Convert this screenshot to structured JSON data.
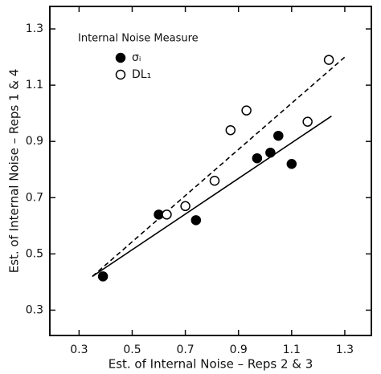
{
  "chart_data": {
    "type": "scatter",
    "x_label": "Est. of Internal Noise – Reps 2 & 3",
    "y_label": "Est. of Internal Noise – Reps 1 & 4",
    "legend_title": "Internal Noise Measure",
    "legend": "upper left",
    "xlim": [
      0.19,
      1.4
    ],
    "ylim": [
      0.21,
      1.38
    ],
    "xticks": [
      0.3,
      0.5,
      0.7,
      0.9,
      1.1,
      1.3
    ],
    "yticks": [
      0.3,
      0.5,
      0.7,
      0.9,
      1.1,
      1.3
    ],
    "series": [
      {
        "name": "σᵢ",
        "color": "#000000",
        "marker": "filled",
        "x": [
          0.39,
          0.6,
          0.74,
          0.97,
          1.02,
          1.05,
          1.1
        ],
        "values": [
          0.42,
          0.64,
          0.62,
          0.84,
          0.86,
          0.92,
          0.82
        ],
        "fit": {
          "dashed": false,
          "x": [
            0.35,
            1.25
          ],
          "values": [
            0.42,
            0.99
          ]
        }
      },
      {
        "name": "DL₁",
        "color": "#000000",
        "marker": "open",
        "x": [
          0.63,
          0.7,
          0.81,
          0.87,
          0.93,
          1.16,
          1.24
        ],
        "values": [
          0.64,
          0.67,
          0.76,
          0.94,
          1.01,
          0.97,
          1.19
        ],
        "fit": {
          "dashed": true,
          "x": [
            0.35,
            1.3
          ],
          "values": [
            0.42,
            1.2
          ]
        }
      }
    ]
  }
}
